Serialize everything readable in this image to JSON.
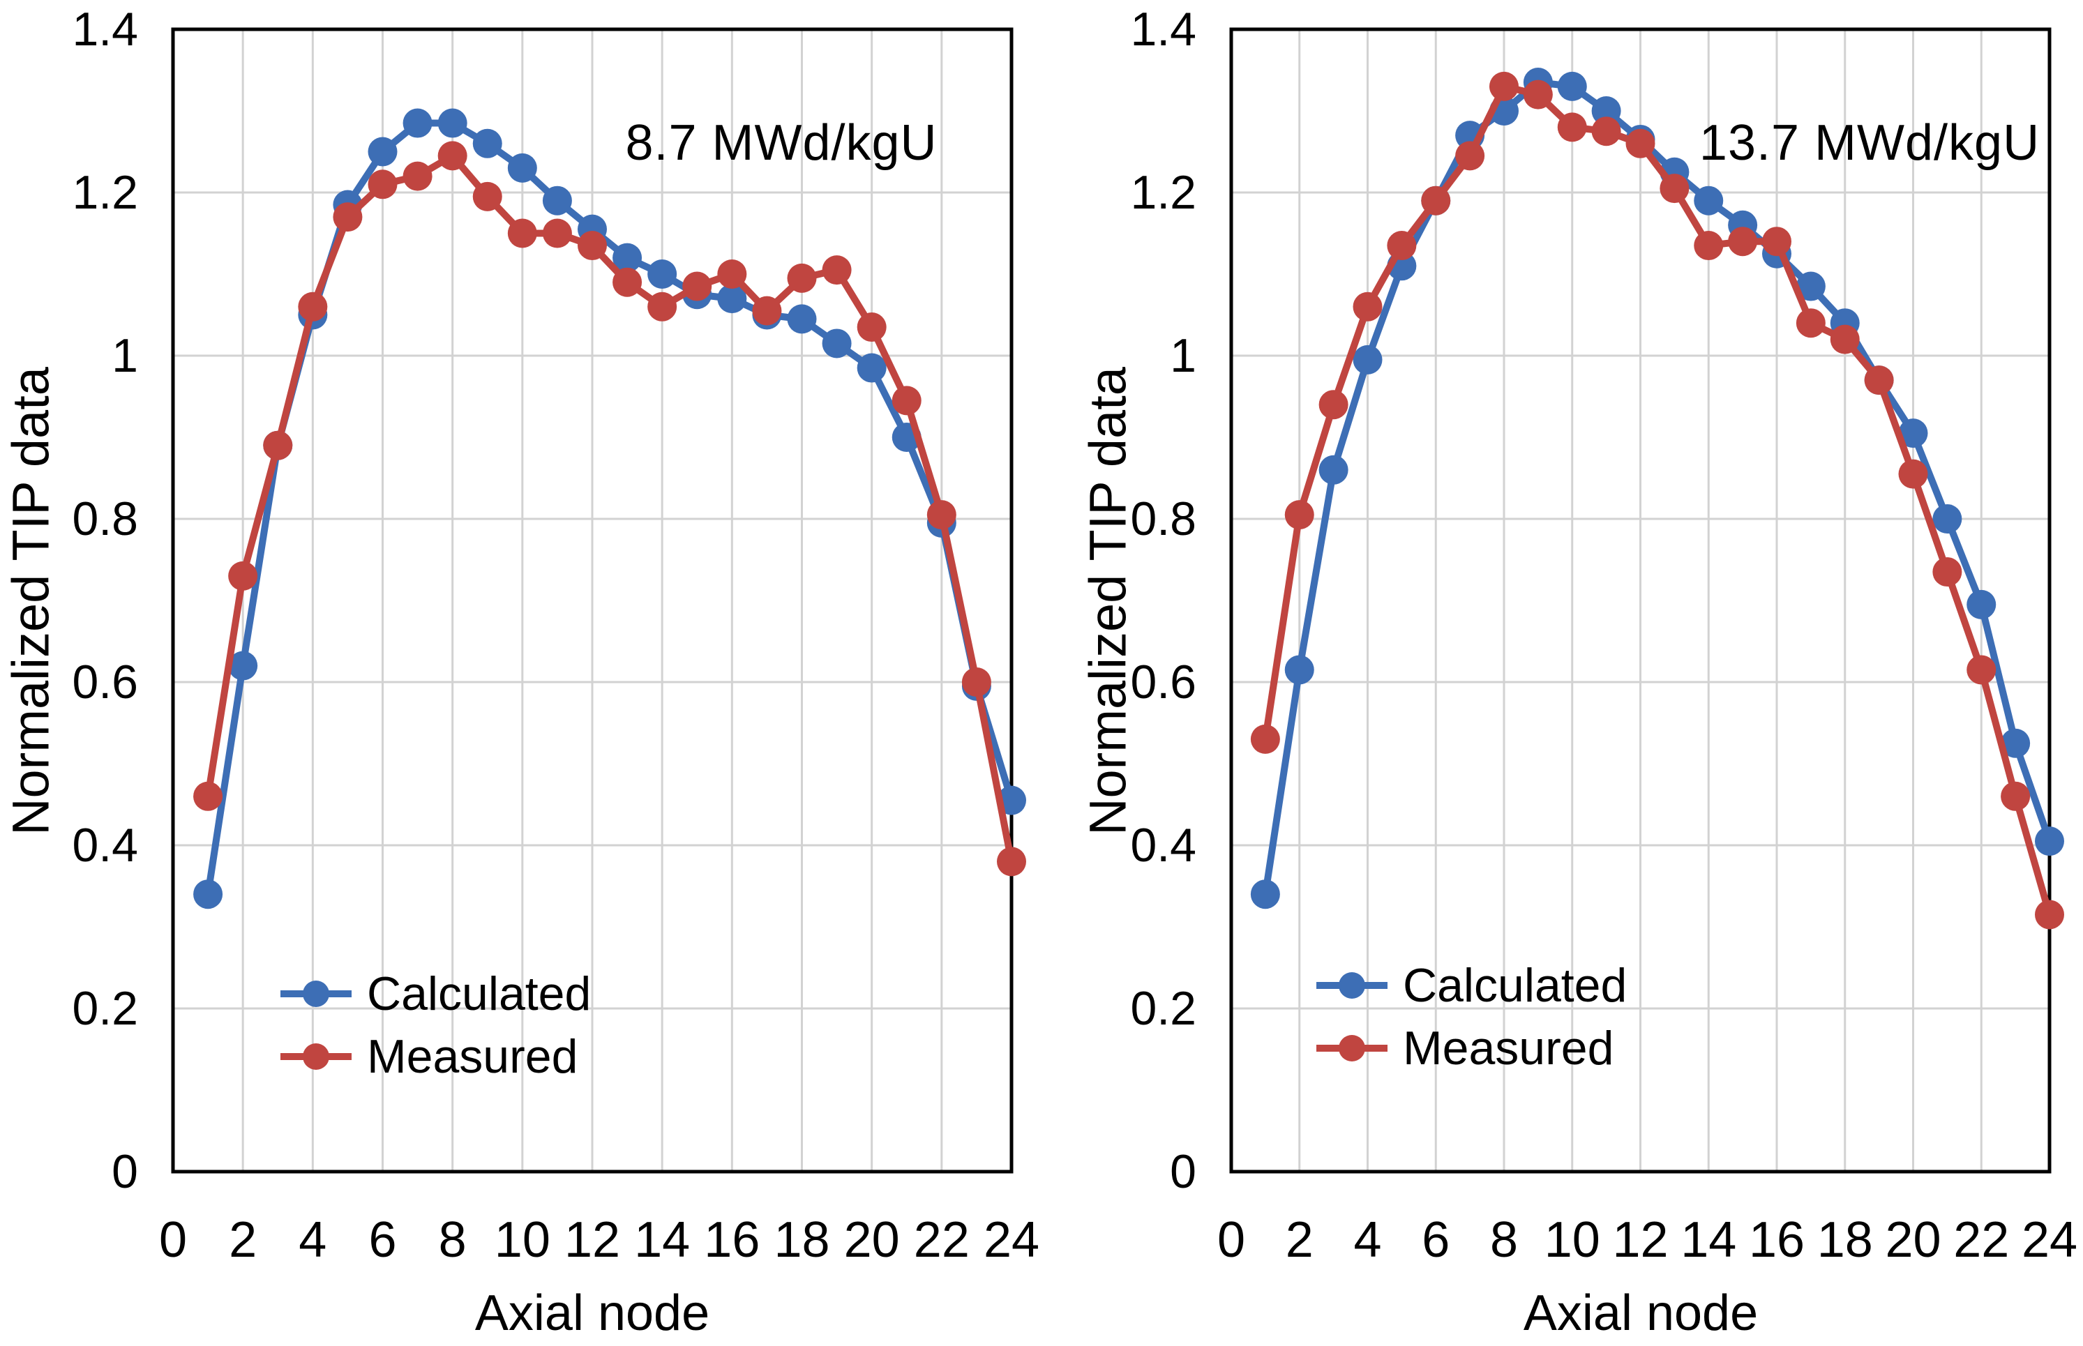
{
  "figure": {
    "background": "#ffffff",
    "text_color": "#000000",
    "grid_color": "#d2d2d2",
    "axis_color": "#000000",
    "calculated_color": "#3d6eb5",
    "measured_color": "#c04540"
  },
  "chart_data": [
    {
      "type": "line",
      "title": "8.7 MWd/kgU",
      "xlabel": "Axial node",
      "ylabel": "Normalized TIP data",
      "xlim": [
        0,
        24
      ],
      "ylim": [
        0,
        1.4
      ],
      "xticks": [
        0,
        2,
        4,
        6,
        8,
        10,
        12,
        14,
        16,
        18,
        20,
        22,
        24
      ],
      "yticks": [
        0,
        0.2,
        0.4,
        0.6,
        0.8,
        1,
        1.2,
        1.4
      ],
      "grid": true,
      "legend_position": "lower-left",
      "x": [
        1,
        2,
        3,
        4,
        5,
        6,
        7,
        8,
        9,
        10,
        11,
        12,
        13,
        14,
        15,
        16,
        17,
        18,
        19,
        20,
        21,
        22,
        23,
        24
      ],
      "series": [
        {
          "name": "Calculated",
          "color": "#3d6eb5",
          "values": [
            0.34,
            0.62,
            0.89,
            1.05,
            1.185,
            1.25,
            1.285,
            1.285,
            1.26,
            1.23,
            1.19,
            1.155,
            1.12,
            1.1,
            1.075,
            1.07,
            1.05,
            1.045,
            1.015,
            0.985,
            0.9,
            0.795,
            0.595,
            0.455
          ]
        },
        {
          "name": "Measured",
          "color": "#c04540",
          "values": [
            0.46,
            0.73,
            0.89,
            1.06,
            1.17,
            1.21,
            1.22,
            1.245,
            1.195,
            1.15,
            1.15,
            1.135,
            1.09,
            1.06,
            1.085,
            1.1,
            1.055,
            1.095,
            1.105,
            1.035,
            0.945,
            0.805,
            0.6,
            0.38
          ]
        }
      ]
    },
    {
      "type": "line",
      "title": "13.7 MWd/kgU",
      "xlabel": "Axial node",
      "ylabel": "Normalized TIP data",
      "xlim": [
        0,
        24
      ],
      "ylim": [
        0,
        1.4
      ],
      "xticks": [
        0,
        2,
        4,
        6,
        8,
        10,
        12,
        14,
        16,
        18,
        20,
        22,
        24
      ],
      "yticks": [
        0,
        0.2,
        0.4,
        0.6,
        0.8,
        1,
        1.2,
        1.4
      ],
      "grid": true,
      "legend_position": "lower-left",
      "x": [
        1,
        2,
        3,
        4,
        5,
        6,
        7,
        8,
        9,
        10,
        11,
        12,
        13,
        14,
        15,
        16,
        17,
        18,
        19,
        20,
        21,
        22,
        23,
        24
      ],
      "series": [
        {
          "name": "Calculated",
          "color": "#3d6eb5",
          "values": [
            0.34,
            0.615,
            0.86,
            0.995,
            1.11,
            1.19,
            1.27,
            1.3,
            1.335,
            1.33,
            1.3,
            1.265,
            1.225,
            1.19,
            1.16,
            1.125,
            1.085,
            1.04,
            0.97,
            0.905,
            0.8,
            0.695,
            0.525,
            0.405
          ]
        },
        {
          "name": "Measured",
          "color": "#c04540",
          "values": [
            0.53,
            0.805,
            0.94,
            1.06,
            1.135,
            1.19,
            1.245,
            1.33,
            1.32,
            1.28,
            1.275,
            1.26,
            1.205,
            1.135,
            1.14,
            1.14,
            1.04,
            1.02,
            0.97,
            0.855,
            0.735,
            0.615,
            0.46,
            0.315
          ]
        }
      ]
    }
  ]
}
